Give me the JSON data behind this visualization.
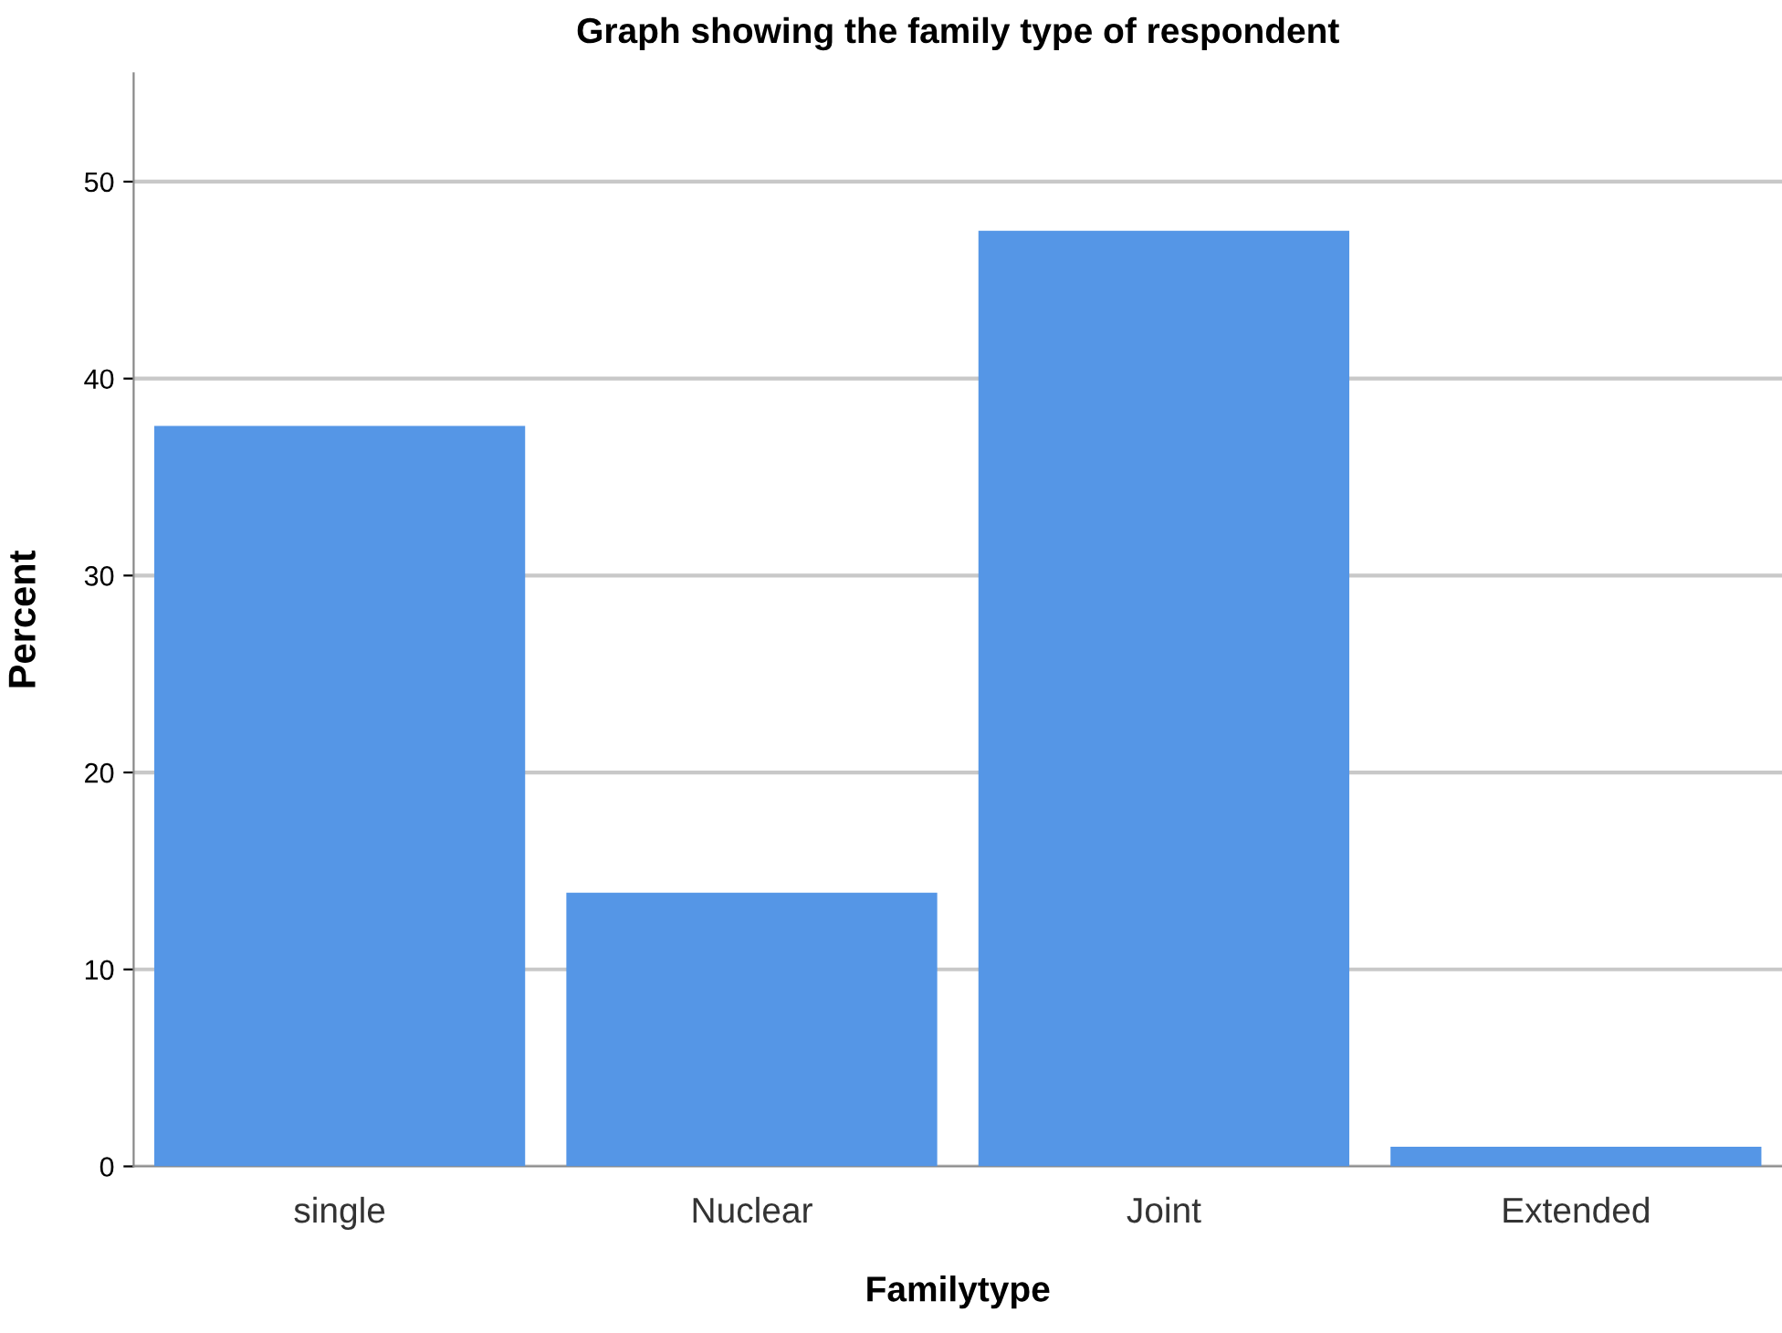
{
  "chart_data": {
    "type": "bar",
    "title": "Graph showing the family type of respondent",
    "xlabel": "Familytype",
    "ylabel": "Percent",
    "categories": [
      "single",
      "Nuclear",
      "Joint",
      "Extended"
    ],
    "values": [
      37.6,
      13.9,
      47.5,
      1.0
    ],
    "color": "#5596e6",
    "ylim": [
      0,
      55.5
    ],
    "yticks": [
      0,
      10,
      20,
      30,
      40,
      50
    ],
    "grid": "y"
  }
}
